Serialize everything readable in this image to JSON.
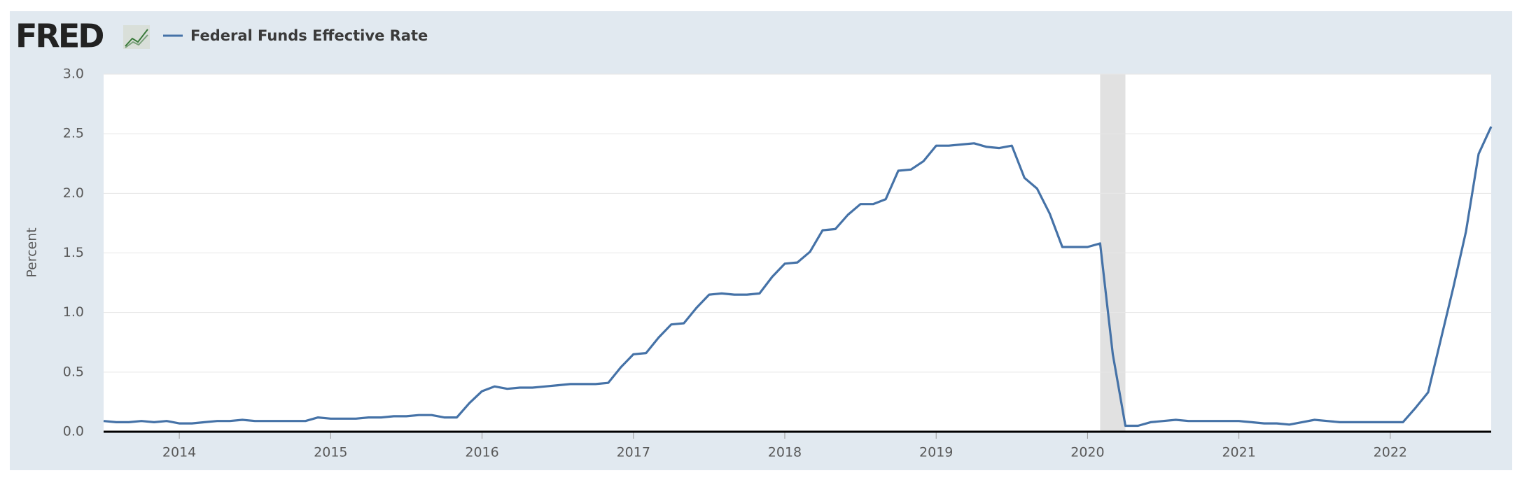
{
  "logo": "FRED",
  "chart_data": {
    "type": "line",
    "y_label": "Percent",
    "x": [
      "2013-07",
      "2013-08",
      "2013-09",
      "2013-10",
      "2013-11",
      "2013-12",
      "2014-01",
      "2014-02",
      "2014-03",
      "2014-04",
      "2014-05",
      "2014-06",
      "2014-07",
      "2014-08",
      "2014-09",
      "2014-10",
      "2014-11",
      "2014-12",
      "2015-01",
      "2015-02",
      "2015-03",
      "2015-04",
      "2015-05",
      "2015-06",
      "2015-07",
      "2015-08",
      "2015-09",
      "2015-10",
      "2015-11",
      "2015-12",
      "2016-01",
      "2016-02",
      "2016-03",
      "2016-04",
      "2016-05",
      "2016-06",
      "2016-07",
      "2016-08",
      "2016-09",
      "2016-10",
      "2016-11",
      "2016-12",
      "2017-01",
      "2017-02",
      "2017-03",
      "2017-04",
      "2017-05",
      "2017-06",
      "2017-07",
      "2017-08",
      "2017-09",
      "2017-10",
      "2017-11",
      "2017-12",
      "2018-01",
      "2018-02",
      "2018-03",
      "2018-04",
      "2018-05",
      "2018-06",
      "2018-07",
      "2018-08",
      "2018-09",
      "2018-10",
      "2018-11",
      "2018-12",
      "2019-01",
      "2019-02",
      "2019-03",
      "2019-04",
      "2019-05",
      "2019-06",
      "2019-07",
      "2019-08",
      "2019-09",
      "2019-10",
      "2019-11",
      "2019-12",
      "2020-01",
      "2020-02",
      "2020-03",
      "2020-04",
      "2020-05",
      "2020-06",
      "2020-07",
      "2020-08",
      "2020-09",
      "2020-10",
      "2020-11",
      "2020-12",
      "2021-01",
      "2021-02",
      "2021-03",
      "2021-04",
      "2021-05",
      "2021-06",
      "2021-07",
      "2021-08",
      "2021-09",
      "2021-10",
      "2021-11",
      "2021-12",
      "2022-01",
      "2022-02",
      "2022-03",
      "2022-04",
      "2022-05",
      "2022-06",
      "2022-07",
      "2022-08",
      "2022-09"
    ],
    "series": [
      {
        "name": "Federal Funds Effective Rate",
        "color": "#4572a7",
        "values": [
          0.09,
          0.08,
          0.08,
          0.09,
          0.08,
          0.09,
          0.07,
          0.07,
          0.08,
          0.09,
          0.09,
          0.1,
          0.09,
          0.09,
          0.09,
          0.09,
          0.09,
          0.12,
          0.11,
          0.11,
          0.11,
          0.12,
          0.12,
          0.13,
          0.13,
          0.14,
          0.14,
          0.12,
          0.12,
          0.24,
          0.34,
          0.38,
          0.36,
          0.37,
          0.37,
          0.38,
          0.39,
          0.4,
          0.4,
          0.4,
          0.41,
          0.54,
          0.65,
          0.66,
          0.79,
          0.9,
          0.91,
          1.04,
          1.15,
          1.16,
          1.15,
          1.15,
          1.16,
          1.3,
          1.41,
          1.42,
          1.51,
          1.69,
          1.7,
          1.82,
          1.91,
          1.91,
          1.95,
          2.19,
          2.2,
          2.27,
          2.4,
          2.4,
          2.41,
          2.42,
          2.39,
          2.38,
          2.4,
          2.13,
          2.04,
          1.83,
          1.55,
          1.55,
          1.55,
          1.58,
          0.65,
          0.05,
          0.05,
          0.08,
          0.09,
          0.1,
          0.09,
          0.09,
          0.09,
          0.09,
          0.09,
          0.08,
          0.07,
          0.07,
          0.06,
          0.08,
          0.1,
          0.09,
          0.08,
          0.08,
          0.08,
          0.08,
          0.08,
          0.08,
          0.2,
          0.33,
          0.77,
          1.21,
          1.68,
          2.33,
          2.56
        ]
      }
    ],
    "recessions": [
      [
        "2020-02",
        "2020-04"
      ]
    ],
    "recession_color": "#e1e1e1",
    "xlim": [
      "2013-07",
      "2022-09"
    ],
    "xticks": [
      2014,
      2015,
      2016,
      2017,
      2018,
      2019,
      2020,
      2021,
      2022
    ],
    "ylim": [
      0,
      3
    ],
    "yticks": [
      {
        "value": 0,
        "label": "0.0"
      },
      0.5,
      {
        "value": 1,
        "label": "1.0"
      },
      1.5,
      {
        "value": 2,
        "label": "2.0"
      },
      2.5,
      {
        "value": 3,
        "label": "3.0"
      }
    ],
    "grid": true
  }
}
